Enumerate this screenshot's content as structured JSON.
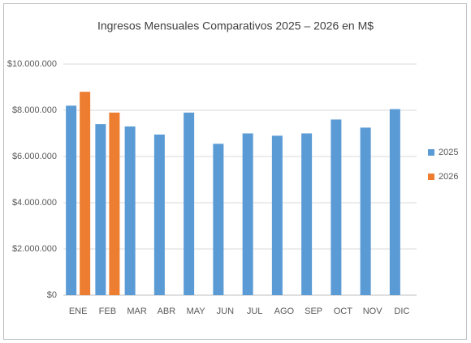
{
  "chart_data": {
    "type": "bar",
    "title": "Ingresos Mensuales Comparativos 2025 – 2026 en M$",
    "categories": [
      "ENE",
      "FEB",
      "MAR",
      "ABR",
      "MAY",
      "JUN",
      "JUL",
      "AGO",
      "SEP",
      "OCT",
      "NOV",
      "DIC"
    ],
    "series": [
      {
        "name": "2025",
        "color": "#5b9bd5",
        "values": [
          8200000,
          7400000,
          7300000,
          6950000,
          7900000,
          6550000,
          7000000,
          6900000,
          7000000,
          7600000,
          7250000,
          8050000
        ]
      },
      {
        "name": "2026",
        "color": "#ed7d31",
        "values": [
          8800000,
          7900000,
          null,
          null,
          null,
          null,
          null,
          null,
          null,
          null,
          null,
          null
        ]
      }
    ],
    "ylim": [
      0,
      10000000
    ],
    "yticks": [
      {
        "value": 0,
        "label": "$0"
      },
      {
        "value": 2000000,
        "label": "$2.000.000"
      },
      {
        "value": 4000000,
        "label": "$4.000.000"
      },
      {
        "value": 6000000,
        "label": "$6.000.000"
      },
      {
        "value": 8000000,
        "label": "$8.000.000"
      },
      {
        "value": 10000000,
        "label": "$10.000.000"
      }
    ],
    "grid": true,
    "legend": "right"
  }
}
